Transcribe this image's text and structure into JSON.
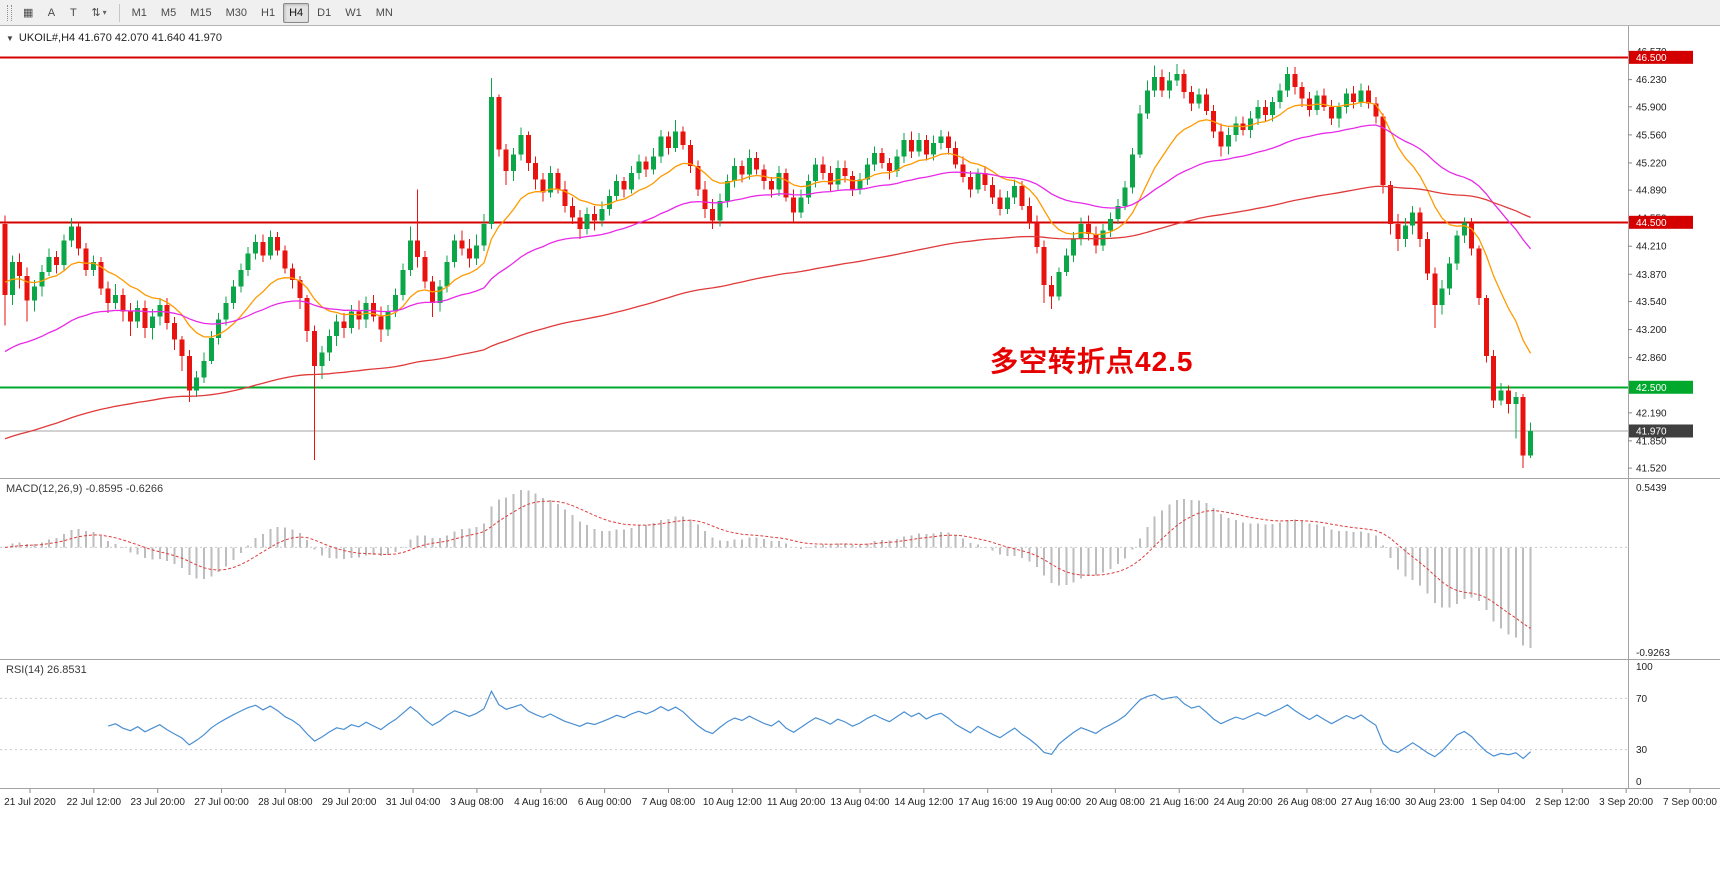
{
  "colors": {
    "up": "#0aa648",
    "down": "#e8120e",
    "panel_border": "#a3a3a3",
    "axis_text": "#222222",
    "macd_hist": "#bdbdbd",
    "macd_signal": "#e03c3c",
    "grid_dotted": "#c9c9c9",
    "tick_mark": "#888888"
  },
  "toolbar": {
    "tools": [
      {
        "name": "chart-window-icon-button",
        "glyph": "▦"
      },
      {
        "name": "cursor-a-tool-button",
        "glyph": "A"
      },
      {
        "name": "text-tool-button",
        "glyph": "T"
      },
      {
        "name": "arrange-scale-tool-button",
        "glyph": "⇅",
        "caret": "▾"
      }
    ],
    "timeframes": [
      "M1",
      "M5",
      "M15",
      "M30",
      "H1",
      "H4",
      "D1",
      "W1",
      "MN"
    ],
    "active_timeframe": "H4"
  },
  "chart_header": {
    "dropdown_icon": "▼",
    "symbol_line": "UKOIL#,H4 41.670 42.070 41.640 41.970"
  },
  "annotation": {
    "text": "多空转折点42.5",
    "color": "#e60000"
  },
  "levels": [
    {
      "price": 46.5,
      "color": "#d40000",
      "width": 2
    },
    {
      "price": 44.5,
      "color": "#d40000",
      "width": 2
    },
    {
      "price": 42.5,
      "color": "#00a92c",
      "width": 2
    },
    {
      "price": 41.97,
      "color": "#a6a6a6",
      "width": 1
    }
  ],
  "price_axis": {
    "ticks": [
      "46.570",
      "46.230",
      "45.900",
      "45.560",
      "45.220",
      "44.890",
      "44.550",
      "44.210",
      "43.870",
      "43.540",
      "43.200",
      "42.860",
      "42.190",
      "41.850",
      "41.520"
    ],
    "badges": [
      {
        "value": "46.500",
        "price": 46.5,
        "bg": "#d40000"
      },
      {
        "value": "44.500",
        "price": 44.5,
        "bg": "#d40000"
      },
      {
        "value": "42.500",
        "price": 42.5,
        "bg": "#00a92c"
      },
      {
        "value": "41.970",
        "price": 41.97,
        "bg": "#3f3f3f"
      }
    ]
  },
  "chart_data": {
    "type": "candlestick",
    "symbol": "UKOIL",
    "timeframe": "H4",
    "grid": "off",
    "last_ohlc": {
      "open": "41.670",
      "high": "42.070",
      "low": "41.640",
      "close": "41.970"
    },
    "price_range": [
      41.4,
      46.88
    ],
    "x_labels": [
      "21 Jul 2020",
      "22 Jul 12:00",
      "23 Jul 20:00",
      "27 Jul 00:00",
      "28 Jul 08:00",
      "29 Jul 20:00",
      "31 Jul 04:00",
      "3 Aug 08:00",
      "4 Aug 16:00",
      "6 Aug 00:00",
      "7 Aug 08:00",
      "10 Aug 12:00",
      "11 Aug 20:00",
      "13 Aug 04:00",
      "14 Aug 12:00",
      "17 Aug 16:00",
      "19 Aug 00:00",
      "20 Aug 08:00",
      "21 Aug 16:00",
      "24 Aug 20:00",
      "26 Aug 08:00",
      "27 Aug 16:00",
      "30 Aug 23:00",
      "1 Sep 04:00",
      "2 Sep 12:00",
      "3 Sep 20:00",
      "7 Sep 00:00"
    ],
    "candles": [
      [
        44.48,
        44.58,
        43.25,
        43.62
      ],
      [
        43.62,
        44.1,
        43.5,
        44.02
      ],
      [
        44.02,
        44.12,
        43.7,
        43.85
      ],
      [
        43.85,
        43.95,
        43.3,
        43.55
      ],
      [
        43.55,
        43.8,
        43.42,
        43.72
      ],
      [
        43.72,
        43.98,
        43.6,
        43.9
      ],
      [
        43.9,
        44.18,
        43.85,
        44.08
      ],
      [
        44.08,
        44.15,
        43.88,
        43.98
      ],
      [
        43.98,
        44.35,
        43.92,
        44.28
      ],
      [
        44.28,
        44.55,
        44.2,
        44.45
      ],
      [
        44.45,
        44.5,
        44.1,
        44.18
      ],
      [
        44.18,
        44.25,
        43.85,
        43.92
      ],
      [
        43.92,
        44.1,
        43.85,
        44.02
      ],
      [
        44.02,
        44.08,
        43.62,
        43.7
      ],
      [
        43.7,
        43.78,
        43.4,
        43.52
      ],
      [
        43.52,
        43.75,
        43.45,
        43.62
      ],
      [
        43.62,
        43.7,
        43.3,
        43.42
      ],
      [
        43.42,
        43.52,
        43.12,
        43.3
      ],
      [
        43.3,
        43.55,
        43.22,
        43.46
      ],
      [
        43.46,
        43.55,
        43.1,
        43.22
      ],
      [
        43.22,
        43.45,
        43.08,
        43.36
      ],
      [
        43.36,
        43.58,
        43.25,
        43.5
      ],
      [
        43.5,
        43.58,
        43.2,
        43.28
      ],
      [
        43.28,
        43.35,
        42.95,
        43.08
      ],
      [
        43.08,
        43.12,
        42.7,
        42.88
      ],
      [
        42.88,
        42.95,
        42.32,
        42.46
      ],
      [
        42.46,
        42.7,
        42.38,
        42.62
      ],
      [
        42.62,
        42.92,
        42.55,
        42.82
      ],
      [
        42.82,
        43.18,
        42.78,
        43.1
      ],
      [
        43.1,
        43.4,
        43.02,
        43.32
      ],
      [
        43.32,
        43.6,
        43.25,
        43.52
      ],
      [
        43.52,
        43.8,
        43.45,
        43.72
      ],
      [
        43.72,
        44.0,
        43.65,
        43.92
      ],
      [
        43.92,
        44.2,
        43.85,
        44.12
      ],
      [
        44.12,
        44.35,
        44.05,
        44.26
      ],
      [
        44.26,
        44.35,
        44.02,
        44.1
      ],
      [
        44.1,
        44.4,
        44.05,
        44.32
      ],
      [
        44.32,
        44.38,
        44.1,
        44.16
      ],
      [
        44.16,
        44.22,
        43.88,
        43.94
      ],
      [
        43.94,
        44.0,
        43.7,
        43.8
      ],
      [
        43.8,
        43.85,
        43.45,
        43.58
      ],
      [
        43.58,
        43.62,
        43.05,
        43.18
      ],
      [
        43.18,
        43.25,
        41.62,
        42.76
      ],
      [
        42.76,
        43.0,
        42.6,
        42.92
      ],
      [
        42.92,
        43.2,
        42.82,
        43.12
      ],
      [
        43.12,
        43.38,
        43.0,
        43.3
      ],
      [
        43.3,
        43.4,
        43.1,
        43.22
      ],
      [
        43.22,
        43.5,
        43.15,
        43.42
      ],
      [
        43.42,
        43.55,
        43.2,
        43.32
      ],
      [
        43.32,
        43.6,
        43.22,
        43.52
      ],
      [
        43.52,
        43.62,
        43.3,
        43.36
      ],
      [
        43.36,
        43.48,
        43.05,
        43.2
      ],
      [
        43.2,
        43.5,
        43.12,
        43.42
      ],
      [
        43.42,
        43.7,
        43.35,
        43.62
      ],
      [
        43.62,
        44.0,
        43.55,
        43.92
      ],
      [
        43.92,
        44.45,
        43.85,
        44.28
      ],
      [
        44.28,
        44.9,
        43.95,
        44.08
      ],
      [
        44.08,
        44.15,
        43.7,
        43.78
      ],
      [
        43.78,
        43.85,
        43.35,
        43.52
      ],
      [
        43.52,
        43.8,
        43.42,
        43.72
      ],
      [
        43.72,
        44.1,
        43.65,
        44.02
      ],
      [
        44.02,
        44.35,
        43.95,
        44.28
      ],
      [
        44.28,
        44.4,
        44.1,
        44.18
      ],
      [
        44.18,
        44.3,
        43.95,
        44.06
      ],
      [
        44.06,
        44.35,
        43.98,
        44.22
      ],
      [
        44.22,
        44.6,
        44.15,
        44.48
      ],
      [
        44.48,
        46.25,
        44.42,
        46.02
      ],
      [
        46.02,
        46.05,
        45.3,
        45.38
      ],
      [
        45.38,
        45.45,
        44.95,
        45.12
      ],
      [
        45.12,
        45.4,
        45.0,
        45.32
      ],
      [
        45.32,
        45.65,
        45.25,
        45.56
      ],
      [
        45.56,
        45.6,
        45.12,
        45.22
      ],
      [
        45.22,
        45.3,
        44.9,
        45.02
      ],
      [
        45.02,
        45.1,
        44.75,
        44.86
      ],
      [
        44.86,
        45.18,
        44.8,
        45.1
      ],
      [
        45.1,
        45.15,
        44.85,
        44.9
      ],
      [
        44.9,
        45.0,
        44.62,
        44.7
      ],
      [
        44.7,
        44.8,
        44.48,
        44.56
      ],
      [
        44.56,
        44.65,
        44.3,
        44.42
      ],
      [
        44.42,
        44.68,
        44.35,
        44.6
      ],
      [
        44.6,
        44.7,
        44.4,
        44.52
      ],
      [
        44.52,
        44.75,
        44.45,
        44.66
      ],
      [
        44.66,
        44.9,
        44.58,
        44.82
      ],
      [
        44.82,
        45.08,
        44.75,
        45.0
      ],
      [
        45.0,
        45.05,
        44.8,
        44.9
      ],
      [
        44.9,
        45.18,
        44.85,
        45.1
      ],
      [
        45.1,
        45.32,
        45.02,
        45.24
      ],
      [
        45.24,
        45.3,
        45.05,
        45.14
      ],
      [
        45.14,
        45.4,
        45.08,
        45.3
      ],
      [
        45.3,
        45.62,
        45.22,
        45.54
      ],
      [
        45.54,
        45.6,
        45.32,
        45.4
      ],
      [
        45.4,
        45.74,
        45.35,
        45.6
      ],
      [
        45.6,
        45.66,
        45.38,
        45.44
      ],
      [
        45.44,
        45.5,
        45.1,
        45.18
      ],
      [
        45.18,
        45.25,
        44.82,
        44.9
      ],
      [
        44.9,
        45.0,
        44.55,
        44.66
      ],
      [
        44.66,
        44.78,
        44.42,
        44.52
      ],
      [
        44.52,
        44.85,
        44.45,
        44.76
      ],
      [
        44.76,
        45.08,
        44.68,
        45.0
      ],
      [
        45.0,
        45.28,
        44.92,
        45.18
      ],
      [
        45.18,
        45.25,
        44.98,
        45.08
      ],
      [
        45.08,
        45.38,
        45.02,
        45.28
      ],
      [
        45.28,
        45.35,
        45.08,
        45.14
      ],
      [
        45.14,
        45.2,
        44.9,
        45.0
      ],
      [
        45.0,
        45.05,
        44.8,
        44.9
      ],
      [
        44.9,
        45.18,
        44.82,
        45.1
      ],
      [
        45.1,
        45.15,
        44.75,
        44.8
      ],
      [
        44.8,
        44.9,
        44.5,
        44.62
      ],
      [
        44.62,
        44.9,
        44.55,
        44.8
      ],
      [
        44.8,
        45.08,
        44.72,
        45.0
      ],
      [
        45.0,
        45.28,
        44.92,
        45.2
      ],
      [
        45.2,
        45.3,
        45.02,
        45.1
      ],
      [
        45.1,
        45.18,
        44.88,
        44.96
      ],
      [
        44.96,
        45.25,
        44.88,
        45.16
      ],
      [
        45.16,
        45.25,
        44.98,
        45.06
      ],
      [
        45.06,
        45.12,
        44.82,
        44.9
      ],
      [
        44.9,
        45.1,
        44.84,
        45.02
      ],
      [
        45.02,
        45.28,
        44.95,
        45.2
      ],
      [
        45.2,
        45.42,
        45.12,
        45.34
      ],
      [
        45.34,
        45.4,
        45.15,
        45.22
      ],
      [
        45.22,
        45.28,
        45.02,
        45.12
      ],
      [
        45.12,
        45.38,
        45.05,
        45.3
      ],
      [
        45.3,
        45.58,
        45.22,
        45.5
      ],
      [
        45.5,
        45.6,
        45.28,
        45.36
      ],
      [
        45.36,
        45.58,
        45.3,
        45.5
      ],
      [
        45.5,
        45.56,
        45.25,
        45.32
      ],
      [
        45.32,
        45.55,
        45.25,
        45.46
      ],
      [
        45.46,
        45.62,
        45.38,
        45.54
      ],
      [
        45.54,
        45.6,
        45.32,
        45.4
      ],
      [
        45.4,
        45.48,
        45.15,
        45.2
      ],
      [
        45.2,
        45.3,
        44.98,
        45.05
      ],
      [
        45.05,
        45.12,
        44.8,
        44.9
      ],
      [
        44.9,
        45.15,
        44.85,
        45.1
      ],
      [
        45.1,
        45.18,
        44.88,
        44.95
      ],
      [
        44.95,
        45.05,
        44.72,
        44.8
      ],
      [
        44.8,
        44.9,
        44.58,
        44.66
      ],
      [
        44.66,
        44.88,
        44.6,
        44.8
      ],
      [
        44.8,
        45.02,
        44.72,
        44.94
      ],
      [
        44.94,
        45.0,
        44.65,
        44.7
      ],
      [
        44.7,
        44.8,
        44.42,
        44.5
      ],
      [
        44.5,
        44.58,
        44.12,
        44.2
      ],
      [
        44.2,
        44.28,
        43.52,
        43.74
      ],
      [
        43.74,
        43.85,
        43.45,
        43.6
      ],
      [
        43.6,
        43.95,
        43.55,
        43.9
      ],
      [
        43.9,
        44.18,
        43.85,
        44.1
      ],
      [
        44.1,
        44.38,
        44.02,
        44.3
      ],
      [
        44.3,
        44.56,
        44.22,
        44.48
      ],
      [
        44.48,
        44.58,
        44.28,
        44.36
      ],
      [
        44.36,
        44.45,
        44.12,
        44.22
      ],
      [
        44.22,
        44.48,
        44.15,
        44.4
      ],
      [
        44.4,
        44.62,
        44.32,
        44.54
      ],
      [
        44.54,
        44.78,
        44.48,
        44.7
      ],
      [
        44.7,
        45.0,
        44.65,
        44.92
      ],
      [
        44.92,
        45.4,
        44.85,
        45.32
      ],
      [
        45.32,
        45.92,
        45.28,
        45.82
      ],
      [
        45.82,
        46.22,
        45.75,
        46.1
      ],
      [
        46.1,
        46.4,
        46.02,
        46.26
      ],
      [
        46.26,
        46.35,
        46.02,
        46.1
      ],
      [
        46.1,
        46.32,
        46.0,
        46.22
      ],
      [
        46.22,
        46.42,
        46.15,
        46.3
      ],
      [
        46.3,
        46.35,
        46.0,
        46.08
      ],
      [
        46.08,
        46.15,
        45.85,
        45.94
      ],
      [
        45.94,
        46.12,
        45.88,
        46.05
      ],
      [
        46.05,
        46.12,
        45.8,
        45.85
      ],
      [
        45.85,
        45.92,
        45.52,
        45.6
      ],
      [
        45.6,
        45.7,
        45.3,
        45.42
      ],
      [
        45.42,
        45.65,
        45.32,
        45.56
      ],
      [
        45.56,
        45.78,
        45.48,
        45.7
      ],
      [
        45.7,
        45.78,
        45.55,
        45.62
      ],
      [
        45.62,
        45.85,
        45.52,
        45.76
      ],
      [
        45.76,
        45.98,
        45.68,
        45.9
      ],
      [
        45.9,
        45.98,
        45.72,
        45.8
      ],
      [
        45.8,
        46.02,
        45.72,
        45.96
      ],
      [
        45.96,
        46.18,
        45.88,
        46.1
      ],
      [
        46.1,
        46.38,
        46.02,
        46.3
      ],
      [
        46.3,
        46.38,
        46.05,
        46.14
      ],
      [
        46.14,
        46.2,
        45.9,
        46.0
      ],
      [
        46.0,
        46.08,
        45.78,
        45.86
      ],
      [
        45.86,
        46.1,
        45.8,
        46.04
      ],
      [
        46.04,
        46.12,
        45.85,
        45.9
      ],
      [
        45.9,
        45.98,
        45.68,
        45.76
      ],
      [
        45.76,
        45.95,
        45.65,
        45.9
      ],
      [
        45.9,
        46.12,
        45.82,
        46.06
      ],
      [
        46.06,
        46.15,
        45.88,
        45.96
      ],
      [
        45.96,
        46.18,
        45.9,
        46.1
      ],
      [
        46.1,
        46.16,
        45.88,
        45.94
      ],
      [
        45.94,
        46.02,
        45.7,
        45.78
      ],
      [
        45.78,
        45.82,
        44.85,
        44.95
      ],
      [
        44.95,
        45.0,
        44.35,
        44.48
      ],
      [
        44.48,
        44.6,
        44.15,
        44.3
      ],
      [
        44.3,
        44.55,
        44.2,
        44.46
      ],
      [
        44.46,
        44.7,
        44.35,
        44.62
      ],
      [
        44.62,
        44.68,
        44.2,
        44.3
      ],
      [
        44.3,
        44.38,
        43.8,
        43.88
      ],
      [
        43.88,
        43.95,
        43.22,
        43.5
      ],
      [
        43.5,
        43.8,
        43.38,
        43.7
      ],
      [
        43.7,
        44.08,
        43.62,
        44.0
      ],
      [
        44.0,
        44.4,
        43.92,
        44.34
      ],
      [
        44.34,
        44.56,
        44.25,
        44.5
      ],
      [
        44.5,
        44.55,
        44.1,
        44.18
      ],
      [
        44.18,
        44.22,
        43.5,
        43.58
      ],
      [
        43.58,
        43.62,
        42.8,
        42.88
      ],
      [
        42.88,
        42.95,
        42.25,
        42.34
      ],
      [
        42.34,
        42.55,
        42.28,
        42.46
      ],
      [
        42.46,
        42.52,
        42.18,
        42.3
      ],
      [
        42.3,
        42.44,
        41.88,
        42.38
      ],
      [
        42.38,
        42.42,
        41.52,
        41.67
      ],
      [
        41.67,
        42.07,
        41.64,
        41.97
      ]
    ],
    "moving_averages": [
      {
        "name": "fast",
        "color": "#ff9a00",
        "period": 13,
        "seed": 43.8
      },
      {
        "name": "mid",
        "color": "#e82ae8",
        "period": 42,
        "seed": 42.9
      },
      {
        "name": "slow",
        "color": "#e03a3a",
        "period": 140,
        "seed": 41.85
      }
    ],
    "macd": {
      "label_full": "MACD(12,26,9) -0.8595 -0.6266",
      "name": "MACD",
      "fast": 12,
      "slow": 26,
      "signal_period": 9,
      "main_value": "-0.8595",
      "signal_value": "-0.6266",
      "axis_max": "0.5439",
      "axis_min": "-0.9263"
    },
    "rsi": {
      "label_full": "RSI(14) 26.8531",
      "name": "RSI",
      "period": 14,
      "value": "26.8531",
      "axis": [
        "100",
        "70",
        "30",
        "0"
      ],
      "levels": [
        70,
        30
      ],
      "line_color": "#4a8fd2"
    }
  }
}
